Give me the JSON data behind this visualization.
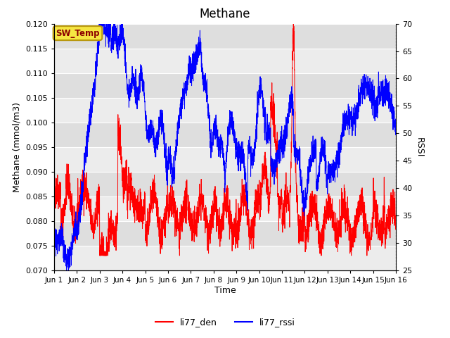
{
  "title": "Methane",
  "ylabel_left": "Methane (mmol/m3)",
  "ylabel_right": "RSSI",
  "xlabel": "Time",
  "ylim_left": [
    0.07,
    0.12
  ],
  "ylim_right": [
    25,
    70
  ],
  "xlim": [
    0,
    15
  ],
  "xtick_labels": [
    "Jun 1",
    "Jun 2",
    "Jun 3",
    "Jun 4",
    "Jun 5",
    "Jun 6",
    "Jun 7",
    "Jun 8",
    "Jun 9",
    "Jun 10",
    "Jun 11",
    "Jun 12",
    "Jun 13",
    "Jun 14",
    "Jun 15",
    "Jun 16"
  ],
  "xtick_positions": [
    0,
    1,
    2,
    3,
    4,
    5,
    6,
    7,
    8,
    9,
    10,
    11,
    12,
    13,
    14,
    15
  ],
  "legend_labels": [
    "li77_den",
    "li77_rssi"
  ],
  "sw_temp_label": "SW_Temp",
  "band_light": "#ececec",
  "band_dark": "#dedede",
  "title_fontsize": 12,
  "axis_fontsize": 9,
  "tick_fontsize": 8,
  "yticks_left": [
    0.07,
    0.075,
    0.08,
    0.085,
    0.09,
    0.095,
    0.1,
    0.105,
    0.11,
    0.115,
    0.12
  ],
  "yticks_right": [
    25,
    30,
    35,
    40,
    45,
    50,
    55,
    60,
    65,
    70
  ]
}
